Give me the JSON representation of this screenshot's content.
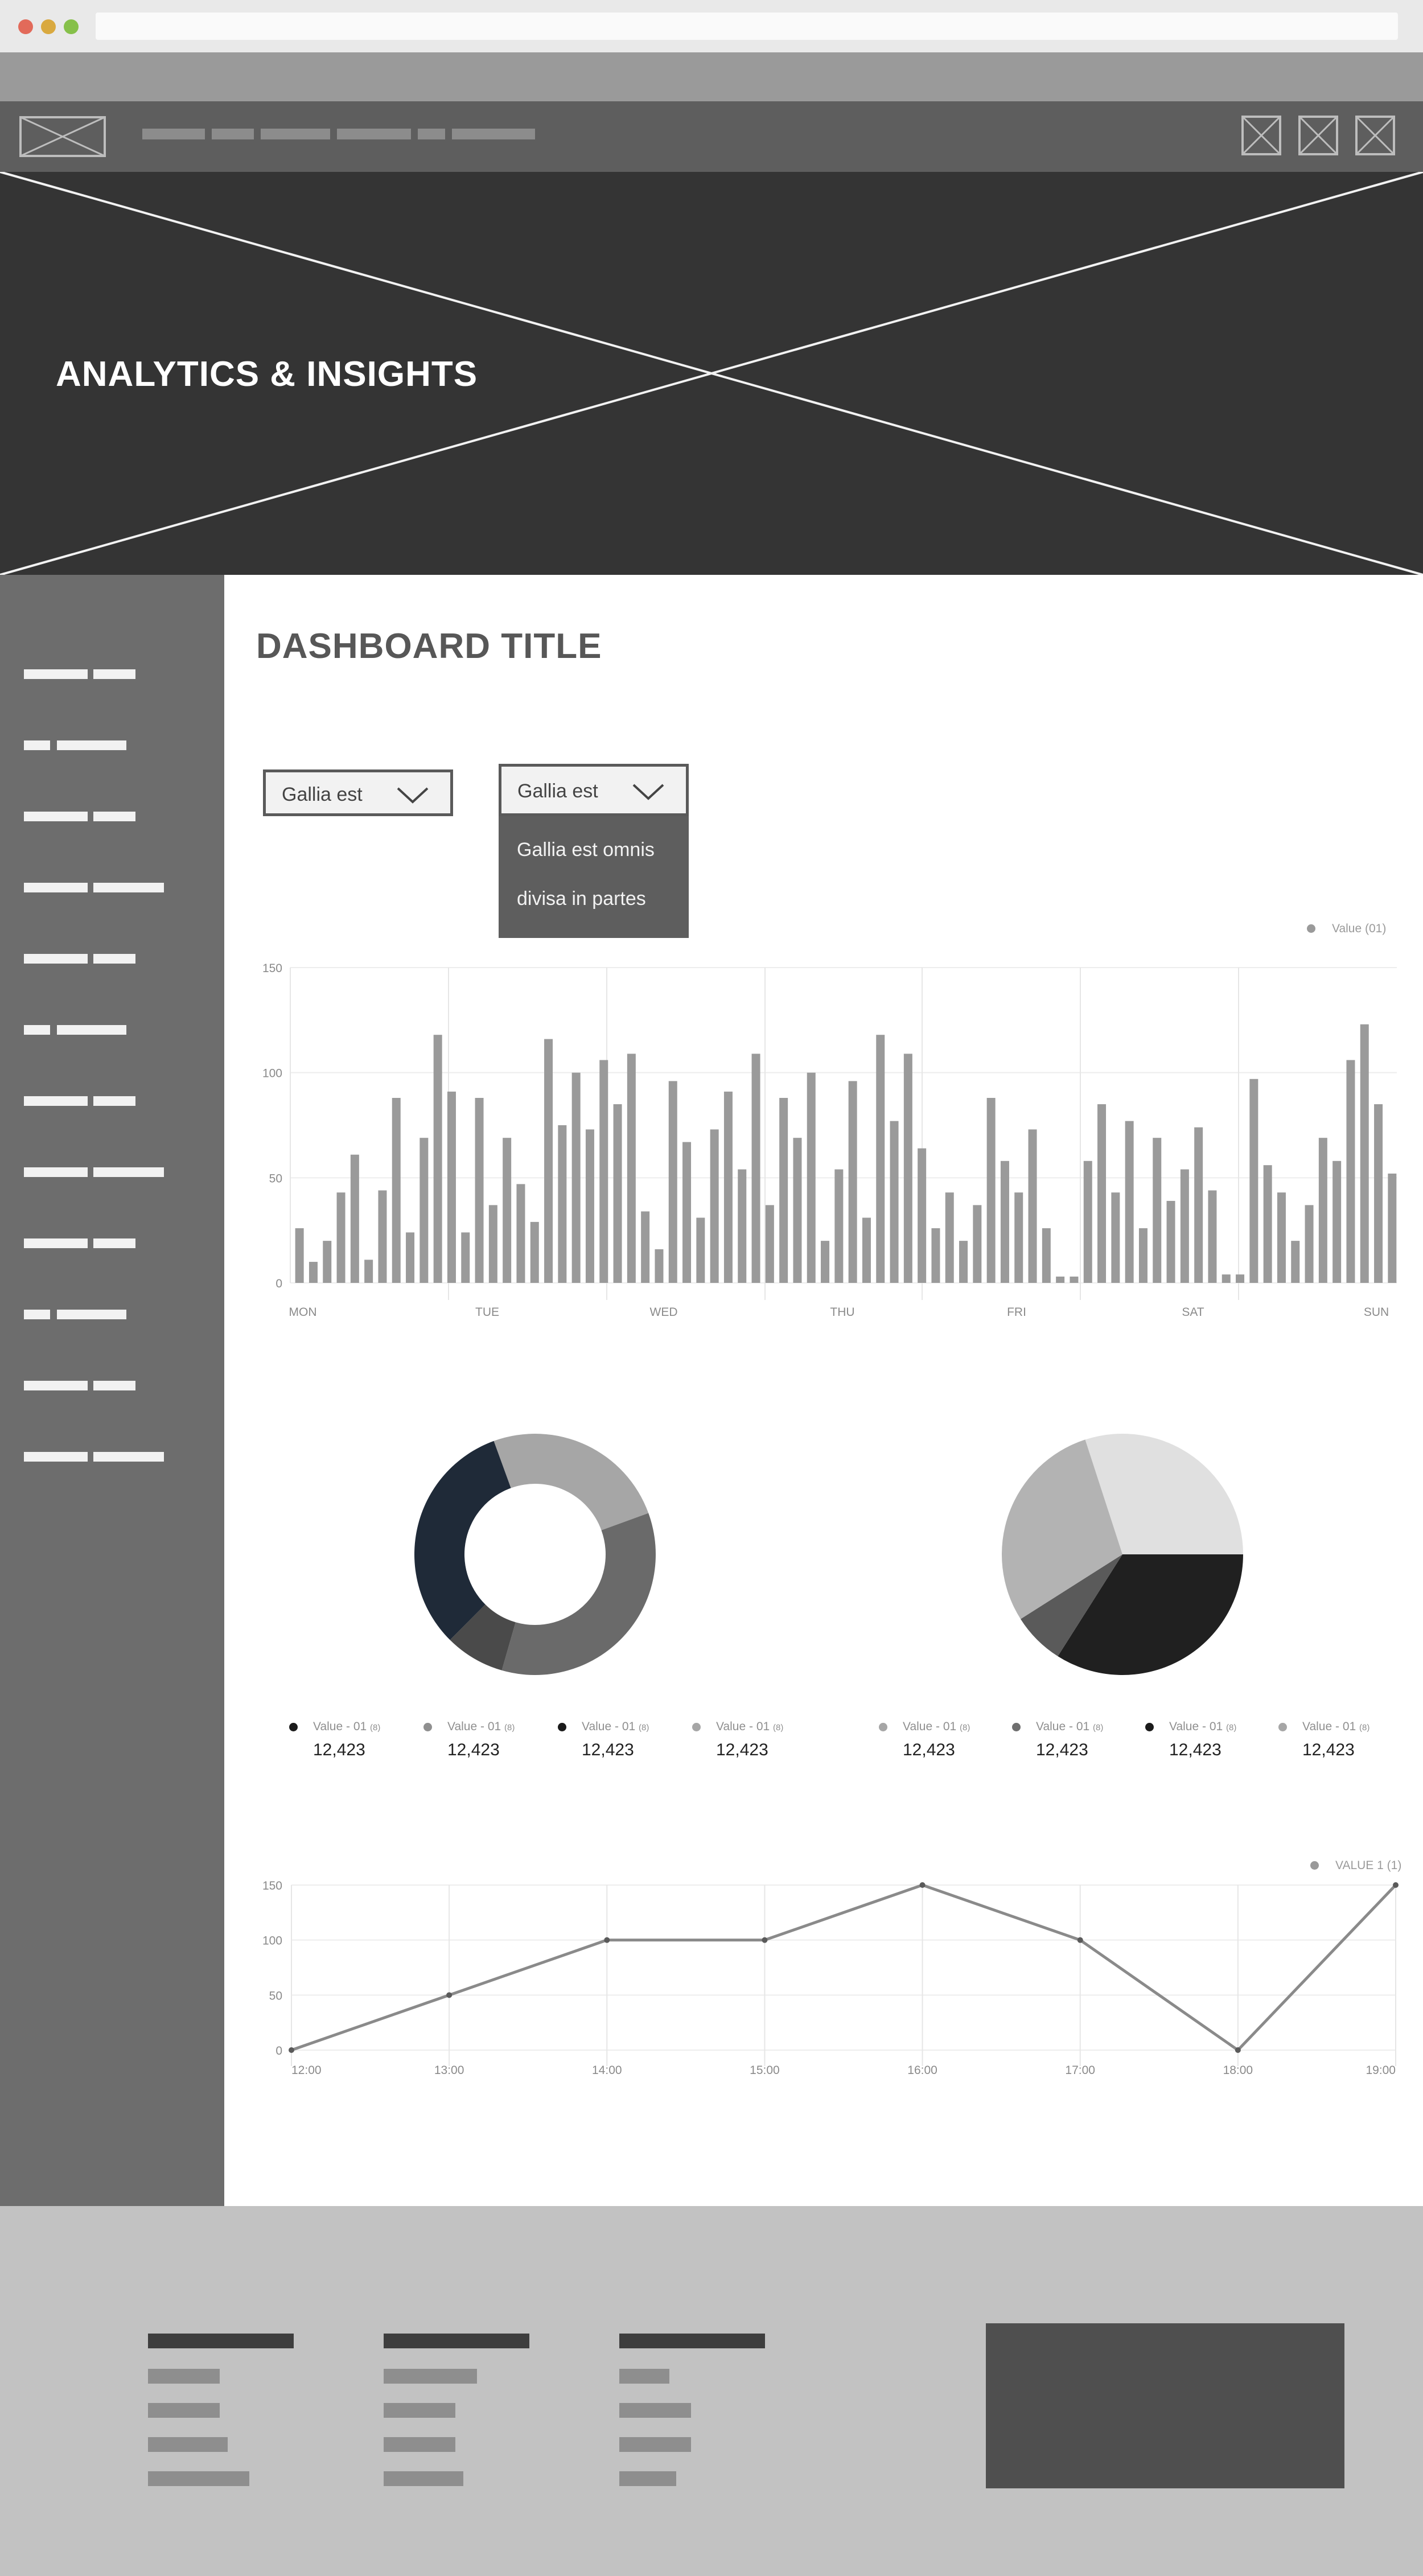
{
  "hero": {
    "title": "ANALYTICS & INSIGHTS"
  },
  "dashboard": {
    "title": "DASHBOARD TITLE"
  },
  "filters": {
    "select_1": {
      "value": "Gallia est"
    },
    "select_2": {
      "value": "Gallia est",
      "options": [
        "Gallia est omnis",
        "divisa in partes"
      ]
    }
  },
  "colors": {
    "bar": "#9a9a9a",
    "dark_navy": "#1f2a38",
    "line": "#8a8a8a"
  },
  "bar_legend": "Value (01)",
  "line_legend": "VALUE 1 (1)",
  "pie_legends": {
    "donut": [
      {
        "label": "Value - 01",
        "unit": "(8)",
        "value": "12,423",
        "color": "#1b1b1b"
      },
      {
        "label": "Value - 01",
        "unit": "(8)",
        "value": "12,423",
        "color": "#8f8f8f"
      },
      {
        "label": "Value - 01",
        "unit": "(8)",
        "value": "12,423",
        "color": "#1b1b1b"
      },
      {
        "label": "Value - 01",
        "unit": "(8)",
        "value": "12,423",
        "color": "#a6a6a6"
      }
    ],
    "pie": [
      {
        "label": "Value - 01",
        "unit": "(8)",
        "value": "12,423",
        "color": "#a6a6a6"
      },
      {
        "label": "Value - 01",
        "unit": "(8)",
        "value": "12,423",
        "color": "#6f6f6f"
      },
      {
        "label": "Value - 01",
        "unit": "(8)",
        "value": "12,423",
        "color": "#1b1b1b"
      },
      {
        "label": "Value - 01",
        "unit": "(8)",
        "value": "12,423",
        "color": "#a6a6a6"
      }
    ]
  },
  "chart_data": [
    {
      "type": "bar",
      "ylim": [
        0,
        150
      ],
      "yticks": [
        0,
        50,
        100,
        150
      ],
      "xtick_labels": [
        "MON",
        "TUE",
        "WED",
        "THU",
        "FRI",
        "SAT",
        "SUN"
      ],
      "legend": "Value (01)",
      "grid": true,
      "values": [
        26,
        10,
        20,
        43,
        61,
        11,
        44,
        88,
        24,
        69,
        118,
        91,
        24,
        88,
        37,
        69,
        47,
        29,
        116,
        75,
        100,
        73,
        106,
        85,
        109,
        34,
        16,
        96,
        67,
        31,
        73,
        91,
        54,
        109,
        37,
        88,
        69,
        100,
        20,
        54,
        96,
        31,
        118,
        77,
        109,
        64,
        26,
        43,
        20,
        37,
        88,
        58,
        43,
        73,
        26,
        3,
        3,
        58,
        85,
        43,
        77,
        26,
        69,
        39,
        54,
        74,
        44,
        4,
        4,
        97,
        56,
        43,
        20,
        37,
        69,
        58,
        106,
        123,
        85,
        52
      ]
    },
    {
      "type": "pie",
      "variant": "donut",
      "slices": [
        {
          "value": 25,
          "color": "#a6a6a6"
        },
        {
          "value": 35,
          "color": "#6a6a6a"
        },
        {
          "value": 8,
          "color": "#4a4a4a"
        },
        {
          "value": 32,
          "color": "#1f2a38"
        }
      ]
    },
    {
      "type": "pie",
      "slices": [
        {
          "value": 30,
          "color": "#e0e0e0"
        },
        {
          "value": 34,
          "color": "#202020"
        },
        {
          "value": 7,
          "color": "#5a5a5a"
        },
        {
          "value": 29,
          "color": "#b3b3b3"
        }
      ]
    },
    {
      "type": "line",
      "x": [
        "12:00",
        "13:00",
        "14:00",
        "15:00",
        "16:00",
        "17:00",
        "18:00",
        "19:00"
      ],
      "y": [
        0,
        50,
        100,
        100,
        150,
        100,
        0,
        150
      ],
      "ylim": [
        0,
        150
      ],
      "yticks": [
        0,
        50,
        100,
        150
      ],
      "legend": "VALUE 1 (1)",
      "grid": true
    }
  ]
}
